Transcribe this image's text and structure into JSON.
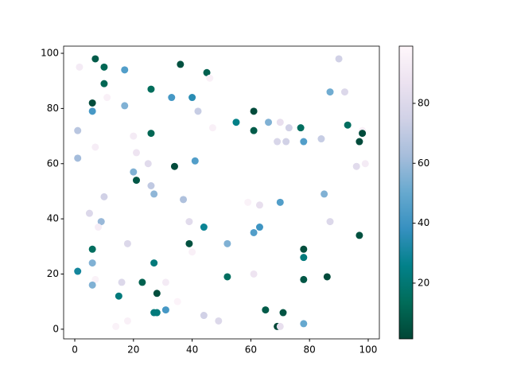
{
  "chart_data": {
    "type": "scatter",
    "x": [
      1.6,
      7,
      10,
      10,
      17,
      6,
      11,
      6,
      17,
      26,
      36,
      45,
      46,
      33,
      40,
      42,
      1,
      55,
      61,
      61,
      47,
      66,
      70,
      73,
      77,
      69,
      72,
      78,
      84,
      87,
      90,
      92,
      93,
      98,
      98,
      97,
      99,
      96,
      1,
      7,
      20,
      26,
      21,
      25,
      34,
      41,
      20,
      21,
      26,
      27,
      10,
      37,
      59,
      63,
      70,
      85,
      5,
      9,
      8,
      39,
      87,
      44,
      63,
      61,
      97,
      18,
      39,
      52,
      40,
      6,
      78,
      78,
      6,
      27,
      1,
      52,
      61,
      7,
      6,
      16,
      23,
      31,
      78,
      86,
      15,
      28,
      35,
      31,
      27,
      28,
      65,
      71,
      44,
      49,
      18,
      14,
      69,
      70,
      78
    ],
    "values": [
      95,
      98,
      95,
      89,
      94,
      82,
      84,
      79,
      81,
      87,
      96,
      93,
      91,
      84,
      84,
      79,
      72,
      75,
      79,
      72,
      73,
      75,
      75,
      73,
      73,
      68,
      68,
      68,
      69,
      86,
      98,
      86,
      74,
      72,
      71,
      68,
      60,
      59,
      62,
      66,
      70,
      71,
      64,
      60,
      59,
      61,
      57,
      54,
      52,
      49,
      48,
      47,
      46,
      45,
      46,
      49,
      42,
      39,
      37,
      39,
      39,
      37,
      37,
      35,
      34,
      31,
      31,
      31,
      28,
      29,
      29,
      26,
      24,
      24,
      21,
      19,
      20,
      18,
      16,
      17,
      17,
      17,
      18,
      19,
      12,
      13,
      10,
      7,
      6,
      6,
      7,
      6,
      5,
      3,
      3,
      1,
      1,
      1,
      2
    ],
    "c": [
      92,
      8,
      12,
      12,
      45,
      3,
      95,
      42,
      55,
      14,
      5,
      10,
      95,
      42,
      35,
      72,
      68,
      25,
      3,
      8,
      95,
      55,
      85,
      75,
      15,
      78,
      75,
      45,
      72,
      52,
      75,
      80,
      15,
      95,
      3,
      3,
      92,
      82,
      62,
      93,
      92,
      12,
      88,
      82,
      3,
      45,
      55,
      7,
      70,
      58,
      75,
      65,
      96,
      85,
      45,
      55,
      80,
      60,
      93,
      82,
      80,
      28,
      40,
      45,
      5,
      80,
      5,
      55,
      95,
      15,
      4,
      22,
      55,
      22,
      30,
      15,
      88,
      96,
      55,
      80,
      10,
      92,
      7,
      3,
      22,
      4,
      97,
      42,
      22,
      22,
      8,
      6,
      75,
      80,
      95,
      96,
      2,
      85,
      50
    ],
    "xlim": [
      -3.8,
      103.8
    ],
    "ylim": [
      -3.5,
      102.6
    ],
    "xticks": [
      0,
      20,
      40,
      60,
      80,
      100
    ],
    "yticks": [
      0,
      20,
      40,
      60,
      80,
      100
    ],
    "clim": [
      1.4,
      99.1
    ],
    "cticks": [
      20,
      40,
      60,
      80
    ],
    "colormap": [
      "#014636",
      "#016c59",
      "#02818a",
      "#3690c0",
      "#67a9cf",
      "#a6bddb",
      "#d0d1e6",
      "#ece2f0",
      "#fff7fb"
    ]
  }
}
